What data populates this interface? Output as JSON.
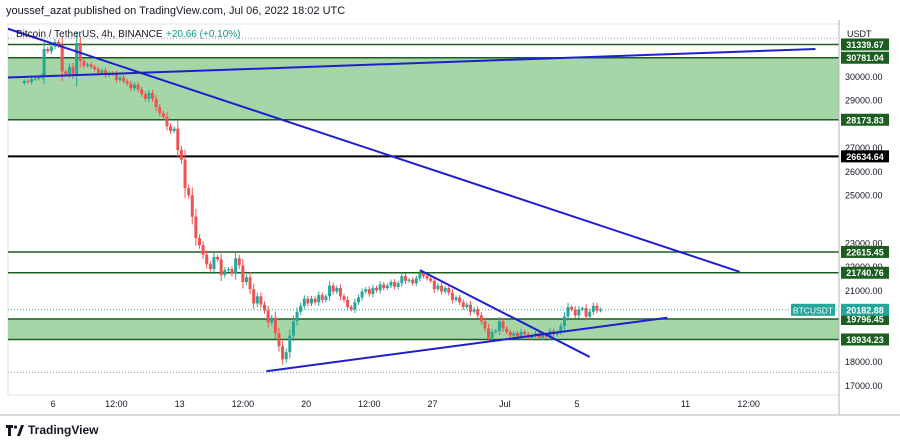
{
  "header": {
    "publish_line": "youssef_azat published on TradingView.com, Jul 06, 2022 18:02 UTC"
  },
  "footer": {
    "brand": "TradingView"
  },
  "colors": {
    "bull": "#26a69a",
    "bear": "#ef5350",
    "zone_fill": "#a5d6a7",
    "zone_border": "#1b5e20",
    "trend": "#1f1fd1",
    "level_black": "#000000"
  },
  "chart_data": {
    "type": "candlestick",
    "legend": {
      "symbol": "Bitcoin / TetherUS, 4h, BINANCE",
      "change": "+20.66 (+0.10%)"
    },
    "y_axis": {
      "unit": "USDT",
      "range": [
        16600,
        32200
      ],
      "ticks": [
        "30000.00",
        "29000.00",
        "27000.00",
        "26000.00",
        "25000.00",
        "23000.00",
        "22000.00",
        "21000.00",
        "18000.00",
        "17000.00"
      ],
      "tick_values": [
        30000,
        29000,
        27000,
        26000,
        25000,
        23000,
        22000,
        21000,
        18000,
        17000
      ]
    },
    "x_axis": {
      "labels": [
        "6",
        "12:00",
        "13",
        "12:00",
        "20",
        "12:00",
        "27",
        "Jul",
        "5",
        "11",
        "12:00"
      ],
      "label_days": [
        6,
        9.5,
        13,
        16.5,
        20,
        23.5,
        27,
        31,
        35,
        41,
        44.5
      ]
    },
    "levels": [
      {
        "label": "31339.67",
        "value": 31339.67,
        "style": "green"
      },
      {
        "label": "30781.04",
        "value": 30781.04,
        "style": "green"
      },
      {
        "label": "28173.83",
        "value": 28173.83,
        "style": "green"
      },
      {
        "label": "26634.64",
        "value": 26634.64,
        "style": "black"
      },
      {
        "label": "22615.45",
        "value": 22615.45,
        "style": "green"
      },
      {
        "label": "21740.76",
        "value": 21740.76,
        "style": "green"
      },
      {
        "label": "19796.45",
        "value": 19796.45,
        "style": "green"
      },
      {
        "label": "18934.23",
        "value": 18934.23,
        "style": "green"
      }
    ],
    "zones": [
      {
        "from": 28173.83,
        "to": 30781.04
      },
      {
        "from": 18934.23,
        "to": 19796.45
      }
    ],
    "current_price": {
      "symbol": "BTCUSDT",
      "value": 20182.88,
      "label": "20182.88"
    },
    "trendlines": [
      {
        "from": [
          3.5,
          32000
        ],
        "to": [
          44.0,
          21780
        ]
      },
      {
        "from": [
          3.5,
          29950
        ],
        "to": [
          48.2,
          31150
        ]
      },
      {
        "from": [
          17.8,
          17600
        ],
        "to": [
          40.0,
          19850
        ]
      },
      {
        "from": [
          26.3,
          21850
        ],
        "to": [
          35.7,
          18200
        ]
      }
    ],
    "candles_close": [
      [
        4.2,
        29720
      ],
      [
        4.4,
        29800
      ],
      [
        4.6,
        29760
      ],
      [
        4.8,
        29880
      ],
      [
        5.0,
        29900
      ],
      [
        5.2,
        29950
      ],
      [
        5.4,
        30050
      ],
      [
        5.5,
        31150
      ],
      [
        5.7,
        31050
      ],
      [
        5.9,
        31250
      ],
      [
        6.1,
        31450
      ],
      [
        6.3,
        31300
      ],
      [
        6.5,
        30200
      ],
      [
        6.7,
        30100
      ],
      [
        6.9,
        30400
      ],
      [
        7.1,
        30050
      ],
      [
        7.3,
        31400
      ],
      [
        7.5,
        30650
      ],
      [
        7.7,
        30450
      ],
      [
        7.9,
        30500
      ],
      [
        8.1,
        30400
      ],
      [
        8.3,
        30300
      ],
      [
        8.5,
        30150
      ],
      [
        8.7,
        30250
      ],
      [
        8.9,
        30050
      ],
      [
        9.1,
        30150
      ],
      [
        9.3,
        30100
      ],
      [
        9.5,
        29850
      ],
      [
        9.7,
        29950
      ],
      [
        9.9,
        29800
      ],
      [
        10.1,
        29700
      ],
      [
        10.3,
        29500
      ],
      [
        10.5,
        29650
      ],
      [
        10.7,
        29450
      ],
      [
        10.9,
        29250
      ],
      [
        11.1,
        29050
      ],
      [
        11.3,
        29300
      ],
      [
        11.5,
        29050
      ],
      [
        11.7,
        28700
      ],
      [
        11.9,
        28450
      ],
      [
        12.1,
        28300
      ],
      [
        12.3,
        27900
      ],
      [
        12.5,
        27700
      ],
      [
        12.7,
        27800
      ],
      [
        12.9,
        26900
      ],
      [
        13.1,
        26500
      ],
      [
        13.3,
        25300
      ],
      [
        13.5,
        25000
      ],
      [
        13.7,
        24100
      ],
      [
        13.9,
        23200
      ],
      [
        14.1,
        22900
      ],
      [
        14.3,
        22500
      ],
      [
        14.5,
        22100
      ],
      [
        14.7,
        21900
      ],
      [
        14.9,
        22400
      ],
      [
        15.1,
        22300
      ],
      [
        15.3,
        21650
      ],
      [
        15.5,
        21850
      ],
      [
        15.7,
        21900
      ],
      [
        15.9,
        21700
      ],
      [
        16.1,
        22350
      ],
      [
        16.3,
        22050
      ],
      [
        16.5,
        21350
      ],
      [
        16.7,
        21550
      ],
      [
        16.9,
        21050
      ],
      [
        17.1,
        20450
      ],
      [
        17.3,
        20750
      ],
      [
        17.5,
        20400
      ],
      [
        17.7,
        20150
      ],
      [
        17.9,
        19650
      ],
      [
        18.1,
        19850
      ],
      [
        18.3,
        19200
      ],
      [
        18.5,
        18650
      ],
      [
        18.7,
        18100
      ],
      [
        18.9,
        18400
      ],
      [
        19.1,
        19100
      ],
      [
        19.3,
        19700
      ],
      [
        19.5,
        20100
      ],
      [
        19.7,
        20350
      ],
      [
        19.9,
        20650
      ],
      [
        20.1,
        20450
      ],
      [
        20.3,
        20650
      ],
      [
        20.5,
        20500
      ],
      [
        20.7,
        20800
      ],
      [
        20.9,
        20600
      ],
      [
        21.1,
        20750
      ],
      [
        21.3,
        21200
      ],
      [
        21.5,
        20950
      ],
      [
        21.7,
        21100
      ],
      [
        21.9,
        20750
      ],
      [
        22.1,
        20600
      ],
      [
        22.3,
        20300
      ],
      [
        22.5,
        20200
      ],
      [
        22.7,
        20500
      ],
      [
        22.9,
        20700
      ],
      [
        23.1,
        20950
      ],
      [
        23.3,
        21050
      ],
      [
        23.5,
        20850
      ],
      [
        23.7,
        21100
      ],
      [
        23.9,
        21000
      ],
      [
        24.1,
        21250
      ],
      [
        24.3,
        21100
      ],
      [
        24.5,
        21200
      ],
      [
        24.7,
        21350
      ],
      [
        24.9,
        21150
      ],
      [
        25.1,
        21300
      ],
      [
        25.3,
        21600
      ],
      [
        25.5,
        21400
      ],
      [
        25.7,
        21450
      ],
      [
        25.9,
        21300
      ],
      [
        26.1,
        21500
      ],
      [
        26.3,
        21700
      ],
      [
        26.5,
        21600
      ],
      [
        26.7,
        21500
      ],
      [
        26.9,
        21400
      ],
      [
        27.1,
        21050
      ],
      [
        27.3,
        21200
      ],
      [
        27.5,
        20950
      ],
      [
        27.7,
        21100
      ],
      [
        27.9,
        20900
      ],
      [
        28.1,
        20600
      ],
      [
        28.3,
        20700
      ],
      [
        28.5,
        20500
      ],
      [
        28.7,
        20300
      ],
      [
        28.9,
        20400
      ],
      [
        29.1,
        20100
      ],
      [
        29.3,
        20200
      ],
      [
        29.5,
        19950
      ],
      [
        29.7,
        19700
      ],
      [
        29.9,
        19400
      ],
      [
        30.1,
        19000
      ],
      [
        30.3,
        19250
      ],
      [
        30.5,
        19300
      ],
      [
        30.7,
        19700
      ],
      [
        30.9,
        19400
      ],
      [
        31.1,
        19250
      ],
      [
        31.3,
        19100
      ],
      [
        31.5,
        19200
      ],
      [
        31.7,
        19050
      ],
      [
        31.9,
        19250
      ],
      [
        32.1,
        19150
      ],
      [
        32.3,
        19000
      ],
      [
        32.5,
        19100
      ],
      [
        32.7,
        19200
      ],
      [
        32.9,
        19000
      ],
      [
        33.1,
        19150
      ],
      [
        33.3,
        19050
      ],
      [
        33.5,
        19300
      ],
      [
        33.7,
        19150
      ],
      [
        33.9,
        19250
      ],
      [
        34.1,
        19500
      ],
      [
        34.3,
        19900
      ],
      [
        34.5,
        20300
      ],
      [
        34.7,
        20200
      ],
      [
        34.9,
        19950
      ],
      [
        35.1,
        20200
      ],
      [
        35.3,
        20250
      ],
      [
        35.5,
        19900
      ],
      [
        35.7,
        20100
      ],
      [
        35.9,
        20350
      ],
      [
        36.1,
        20150
      ],
      [
        36.3,
        20200
      ]
    ]
  }
}
